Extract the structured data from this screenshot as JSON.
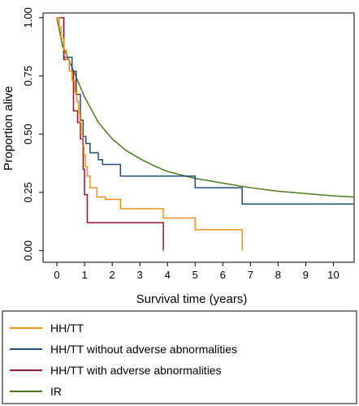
{
  "chart_data": {
    "type": "line",
    "step": true,
    "xlabel": "Survival time (years)",
    "ylabel": "Proportion alive",
    "xlim": [
      -0.5,
      10.75
    ],
    "ylim": [
      -0.05,
      1.02
    ],
    "xticks": [
      "0",
      "1",
      "2",
      "3",
      "4",
      "5",
      "6",
      "7",
      "8",
      "9",
      "10"
    ],
    "yticks": [
      "0.00",
      "0.25",
      "0.50",
      "0.75",
      "1.00"
    ],
    "grid": false,
    "legend_position": "bottom",
    "series": [
      {
        "name": "HH/TT",
        "color": "#F28E1C",
        "points": [
          [
            0,
            1.0
          ],
          [
            0.08,
            0.96
          ],
          [
            0.15,
            0.91
          ],
          [
            0.25,
            0.86
          ],
          [
            0.35,
            0.82
          ],
          [
            0.45,
            0.77
          ],
          [
            0.55,
            0.73
          ],
          [
            0.65,
            0.68
          ],
          [
            0.72,
            0.64
          ],
          [
            0.78,
            0.59
          ],
          [
            0.83,
            0.55
          ],
          [
            0.88,
            0.5
          ],
          [
            0.93,
            0.45
          ],
          [
            0.98,
            0.41
          ],
          [
            1.03,
            0.36
          ],
          [
            1.1,
            0.32
          ],
          [
            1.2,
            0.27
          ],
          [
            1.45,
            0.23
          ],
          [
            1.75,
            0.22
          ],
          [
            2.3,
            0.18
          ],
          [
            3.85,
            0.14
          ],
          [
            5.0,
            0.09
          ],
          [
            6.7,
            0.09
          ],
          [
            6.7,
            0.0
          ]
        ]
      },
      {
        "name": "HH/TT without adverse abnormalities",
        "color": "#1F4E79",
        "points": [
          [
            0,
            1.0
          ],
          [
            0.25,
            0.83
          ],
          [
            0.55,
            0.77
          ],
          [
            0.7,
            0.67
          ],
          [
            0.85,
            0.56
          ],
          [
            0.95,
            0.49
          ],
          [
            1.05,
            0.46
          ],
          [
            1.2,
            0.42
          ],
          [
            1.5,
            0.39
          ],
          [
            1.65,
            0.37
          ],
          [
            2.3,
            0.32
          ],
          [
            5.0,
            0.27
          ],
          [
            6.7,
            0.2
          ],
          [
            10.75,
            0.2
          ]
        ]
      },
      {
        "name": "HH/TT with adverse abnormalities",
        "color": "#8E1A2F",
        "points": [
          [
            0,
            1.0
          ],
          [
            0.25,
            0.82
          ],
          [
            0.45,
            0.77
          ],
          [
            0.6,
            0.6
          ],
          [
            0.75,
            0.55
          ],
          [
            0.85,
            0.48
          ],
          [
            0.95,
            0.35
          ],
          [
            1.0,
            0.24
          ],
          [
            1.1,
            0.12
          ],
          [
            3.85,
            0.12
          ],
          [
            3.85,
            0.0
          ]
        ]
      },
      {
        "name": "IR",
        "color": "#4A7A1C",
        "points": [
          [
            0,
            1.0
          ],
          [
            0.2,
            0.88
          ],
          [
            0.5,
            0.8
          ],
          [
            1.0,
            0.66
          ],
          [
            1.5,
            0.55
          ],
          [
            2.0,
            0.48
          ],
          [
            2.5,
            0.43
          ],
          [
            3.0,
            0.395
          ],
          [
            3.5,
            0.365
          ],
          [
            4.0,
            0.34
          ],
          [
            5.0,
            0.31
          ],
          [
            6.0,
            0.29
          ],
          [
            7.0,
            0.27
          ],
          [
            8.0,
            0.255
          ],
          [
            9.0,
            0.245
          ],
          [
            10.0,
            0.235
          ],
          [
            10.75,
            0.23
          ]
        ]
      }
    ]
  }
}
